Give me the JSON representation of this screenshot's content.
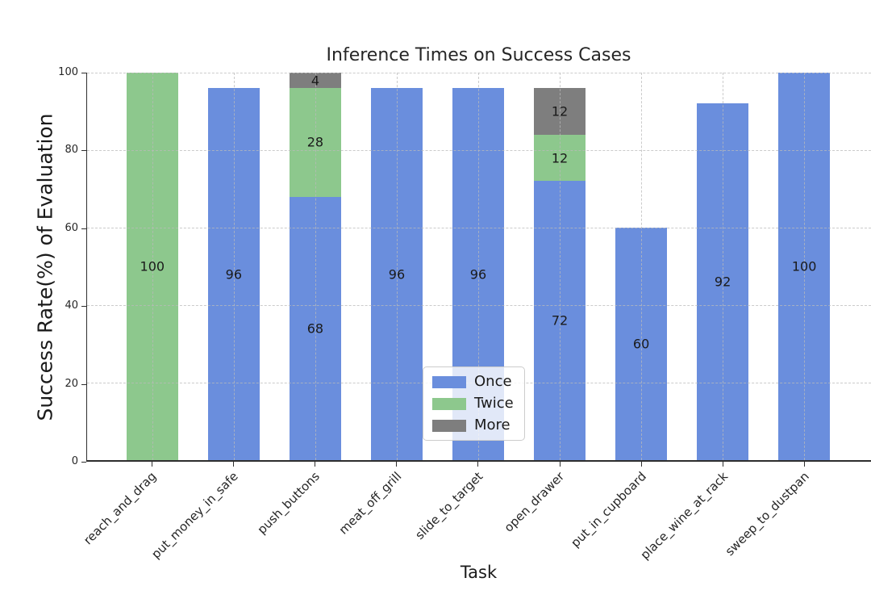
{
  "chart_data": {
    "type": "bar",
    "stacked": true,
    "title": "Inference Times on Success Cases",
    "xlabel": "Task",
    "ylabel": "Success Rate(%) of Evaluation",
    "ylim": [
      0,
      100
    ],
    "yticks": [
      0,
      20,
      40,
      60,
      80,
      100
    ],
    "grid": {
      "horizontal": true,
      "vertical": true,
      "style": "dashed",
      "color": "#bbbbbb",
      "drawn_above_bars": true
    },
    "categories": [
      "reach_and_drag",
      "put_money_in_safe",
      "push_buttons",
      "meat_off_grill",
      "slide_to_target",
      "open_drawer",
      "put_in_cupboard",
      "place_wine_at_rack",
      "sweep_to_dustpan"
    ],
    "series": [
      {
        "name": "Once",
        "color": "#6a8edd",
        "values": [
          0,
          96,
          68,
          96,
          96,
          72,
          60,
          92,
          100
        ]
      },
      {
        "name": "Twice",
        "color": "#8dc88d",
        "values": [
          100,
          0,
          28,
          0,
          0,
          12,
          0,
          0,
          0
        ]
      },
      {
        "name": "More",
        "color": "#7e7e7e",
        "values": [
          0,
          0,
          4,
          0,
          0,
          12,
          0,
          0,
          0
        ]
      }
    ],
    "segment_labels_shown": true,
    "legend": {
      "position": "lower center inside plot",
      "entries": [
        "Once",
        "Twice",
        "More"
      ]
    },
    "colors": {
      "background": "#ffffff",
      "spine": "#2e2e2e",
      "text": "#262626"
    }
  }
}
